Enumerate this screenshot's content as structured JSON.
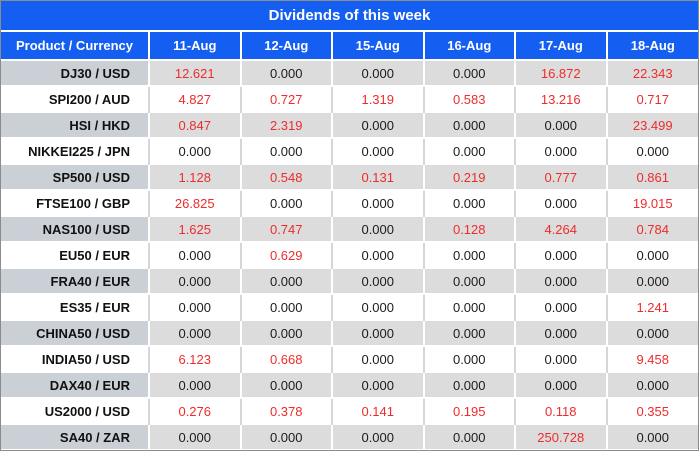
{
  "title": "Dividends of this week",
  "colors": {
    "header_blue": "#155ef2",
    "value_red": "#ee2c2c",
    "zero_black": "#1c1c1c",
    "stripe_label_gray": "#cbd0d7",
    "stripe_data_gray": "#dcdcdc",
    "outer_border_gray": "#8c8c8c"
  },
  "table": {
    "columns": [
      "Product / Currency",
      "11-Aug",
      "12-Aug",
      "15-Aug",
      "16-Aug",
      "17-Aug",
      "18-Aug"
    ],
    "rows": [
      {
        "product": "DJ30 / USD",
        "values": [
          "12.621",
          "0.000",
          "0.000",
          "0.000",
          "16.872",
          "22.343"
        ]
      },
      {
        "product": "SPI200 / AUD",
        "values": [
          "4.827",
          "0.727",
          "1.319",
          "0.583",
          "13.216",
          "0.717"
        ]
      },
      {
        "product": "HSI / HKD",
        "values": [
          "0.847",
          "2.319",
          "0.000",
          "0.000",
          "0.000",
          "23.499"
        ]
      },
      {
        "product": "NIKKEI225 / JPN",
        "values": [
          "0.000",
          "0.000",
          "0.000",
          "0.000",
          "0.000",
          "0.000"
        ]
      },
      {
        "product": "SP500 / USD",
        "values": [
          "1.128",
          "0.548",
          "0.131",
          "0.219",
          "0.777",
          "0.861"
        ]
      },
      {
        "product": "FTSE100 / GBP",
        "values": [
          "26.825",
          "0.000",
          "0.000",
          "0.000",
          "0.000",
          "19.015"
        ]
      },
      {
        "product": "NAS100 / USD",
        "values": [
          "1.625",
          "0.747",
          "0.000",
          "0.128",
          "4.264",
          "0.784"
        ]
      },
      {
        "product": "EU50 / EUR",
        "values": [
          "0.000",
          "0.629",
          "0.000",
          "0.000",
          "0.000",
          "0.000"
        ]
      },
      {
        "product": "FRA40 / EUR",
        "values": [
          "0.000",
          "0.000",
          "0.000",
          "0.000",
          "0.000",
          "0.000"
        ]
      },
      {
        "product": "ES35 / EUR",
        "values": [
          "0.000",
          "0.000",
          "0.000",
          "0.000",
          "0.000",
          "1.241"
        ]
      },
      {
        "product": "CHINA50 / USD",
        "values": [
          "0.000",
          "0.000",
          "0.000",
          "0.000",
          "0.000",
          "0.000"
        ]
      },
      {
        "product": "INDIA50 / USD",
        "values": [
          "6.123",
          "0.668",
          "0.000",
          "0.000",
          "0.000",
          "9.458"
        ]
      },
      {
        "product": "DAX40 / EUR",
        "values": [
          "0.000",
          "0.000",
          "0.000",
          "0.000",
          "0.000",
          "0.000"
        ]
      },
      {
        "product": "US2000 / USD",
        "values": [
          "0.276",
          "0.378",
          "0.141",
          "0.195",
          "0.118",
          "0.355"
        ]
      },
      {
        "product": "SA40 / ZAR",
        "values": [
          "0.000",
          "0.000",
          "0.000",
          "0.000",
          "250.728",
          "0.000"
        ]
      }
    ]
  },
  "chart_data": {
    "type": "table",
    "title": "Dividends of this week",
    "columns": [
      "Product / Currency",
      "11-Aug",
      "12-Aug",
      "15-Aug",
      "16-Aug",
      "17-Aug",
      "18-Aug"
    ],
    "rows": [
      [
        "DJ30 / USD",
        12.621,
        0.0,
        0.0,
        0.0,
        16.872,
        22.343
      ],
      [
        "SPI200 / AUD",
        4.827,
        0.727,
        1.319,
        0.583,
        13.216,
        0.717
      ],
      [
        "HSI / HKD",
        0.847,
        2.319,
        0.0,
        0.0,
        0.0,
        23.499
      ],
      [
        "NIKKEI225 / JPN",
        0.0,
        0.0,
        0.0,
        0.0,
        0.0,
        0.0
      ],
      [
        "SP500 / USD",
        1.128,
        0.548,
        0.131,
        0.219,
        0.777,
        0.861
      ],
      [
        "FTSE100 / GBP",
        26.825,
        0.0,
        0.0,
        0.0,
        0.0,
        19.015
      ],
      [
        "NAS100 / USD",
        1.625,
        0.747,
        0.0,
        0.128,
        4.264,
        0.784
      ],
      [
        "EU50 / EUR",
        0.0,
        0.629,
        0.0,
        0.0,
        0.0,
        0.0
      ],
      [
        "FRA40 / EUR",
        0.0,
        0.0,
        0.0,
        0.0,
        0.0,
        0.0
      ],
      [
        "ES35 / EUR",
        0.0,
        0.0,
        0.0,
        0.0,
        0.0,
        1.241
      ],
      [
        "CHINA50 / USD",
        0.0,
        0.0,
        0.0,
        0.0,
        0.0,
        0.0
      ],
      [
        "INDIA50 / USD",
        6.123,
        0.668,
        0.0,
        0.0,
        0.0,
        9.458
      ],
      [
        "DAX40 / EUR",
        0.0,
        0.0,
        0.0,
        0.0,
        0.0,
        0.0
      ],
      [
        "US2000 / USD",
        0.276,
        0.378,
        0.141,
        0.195,
        0.118,
        0.355
      ],
      [
        "SA40 / ZAR",
        0.0,
        0.0,
        0.0,
        0.0,
        250.728,
        0.0
      ]
    ],
    "notes": "Non-zero dividend values rendered in red; zeros in black. Alternating gray/white row striping starting gray."
  }
}
